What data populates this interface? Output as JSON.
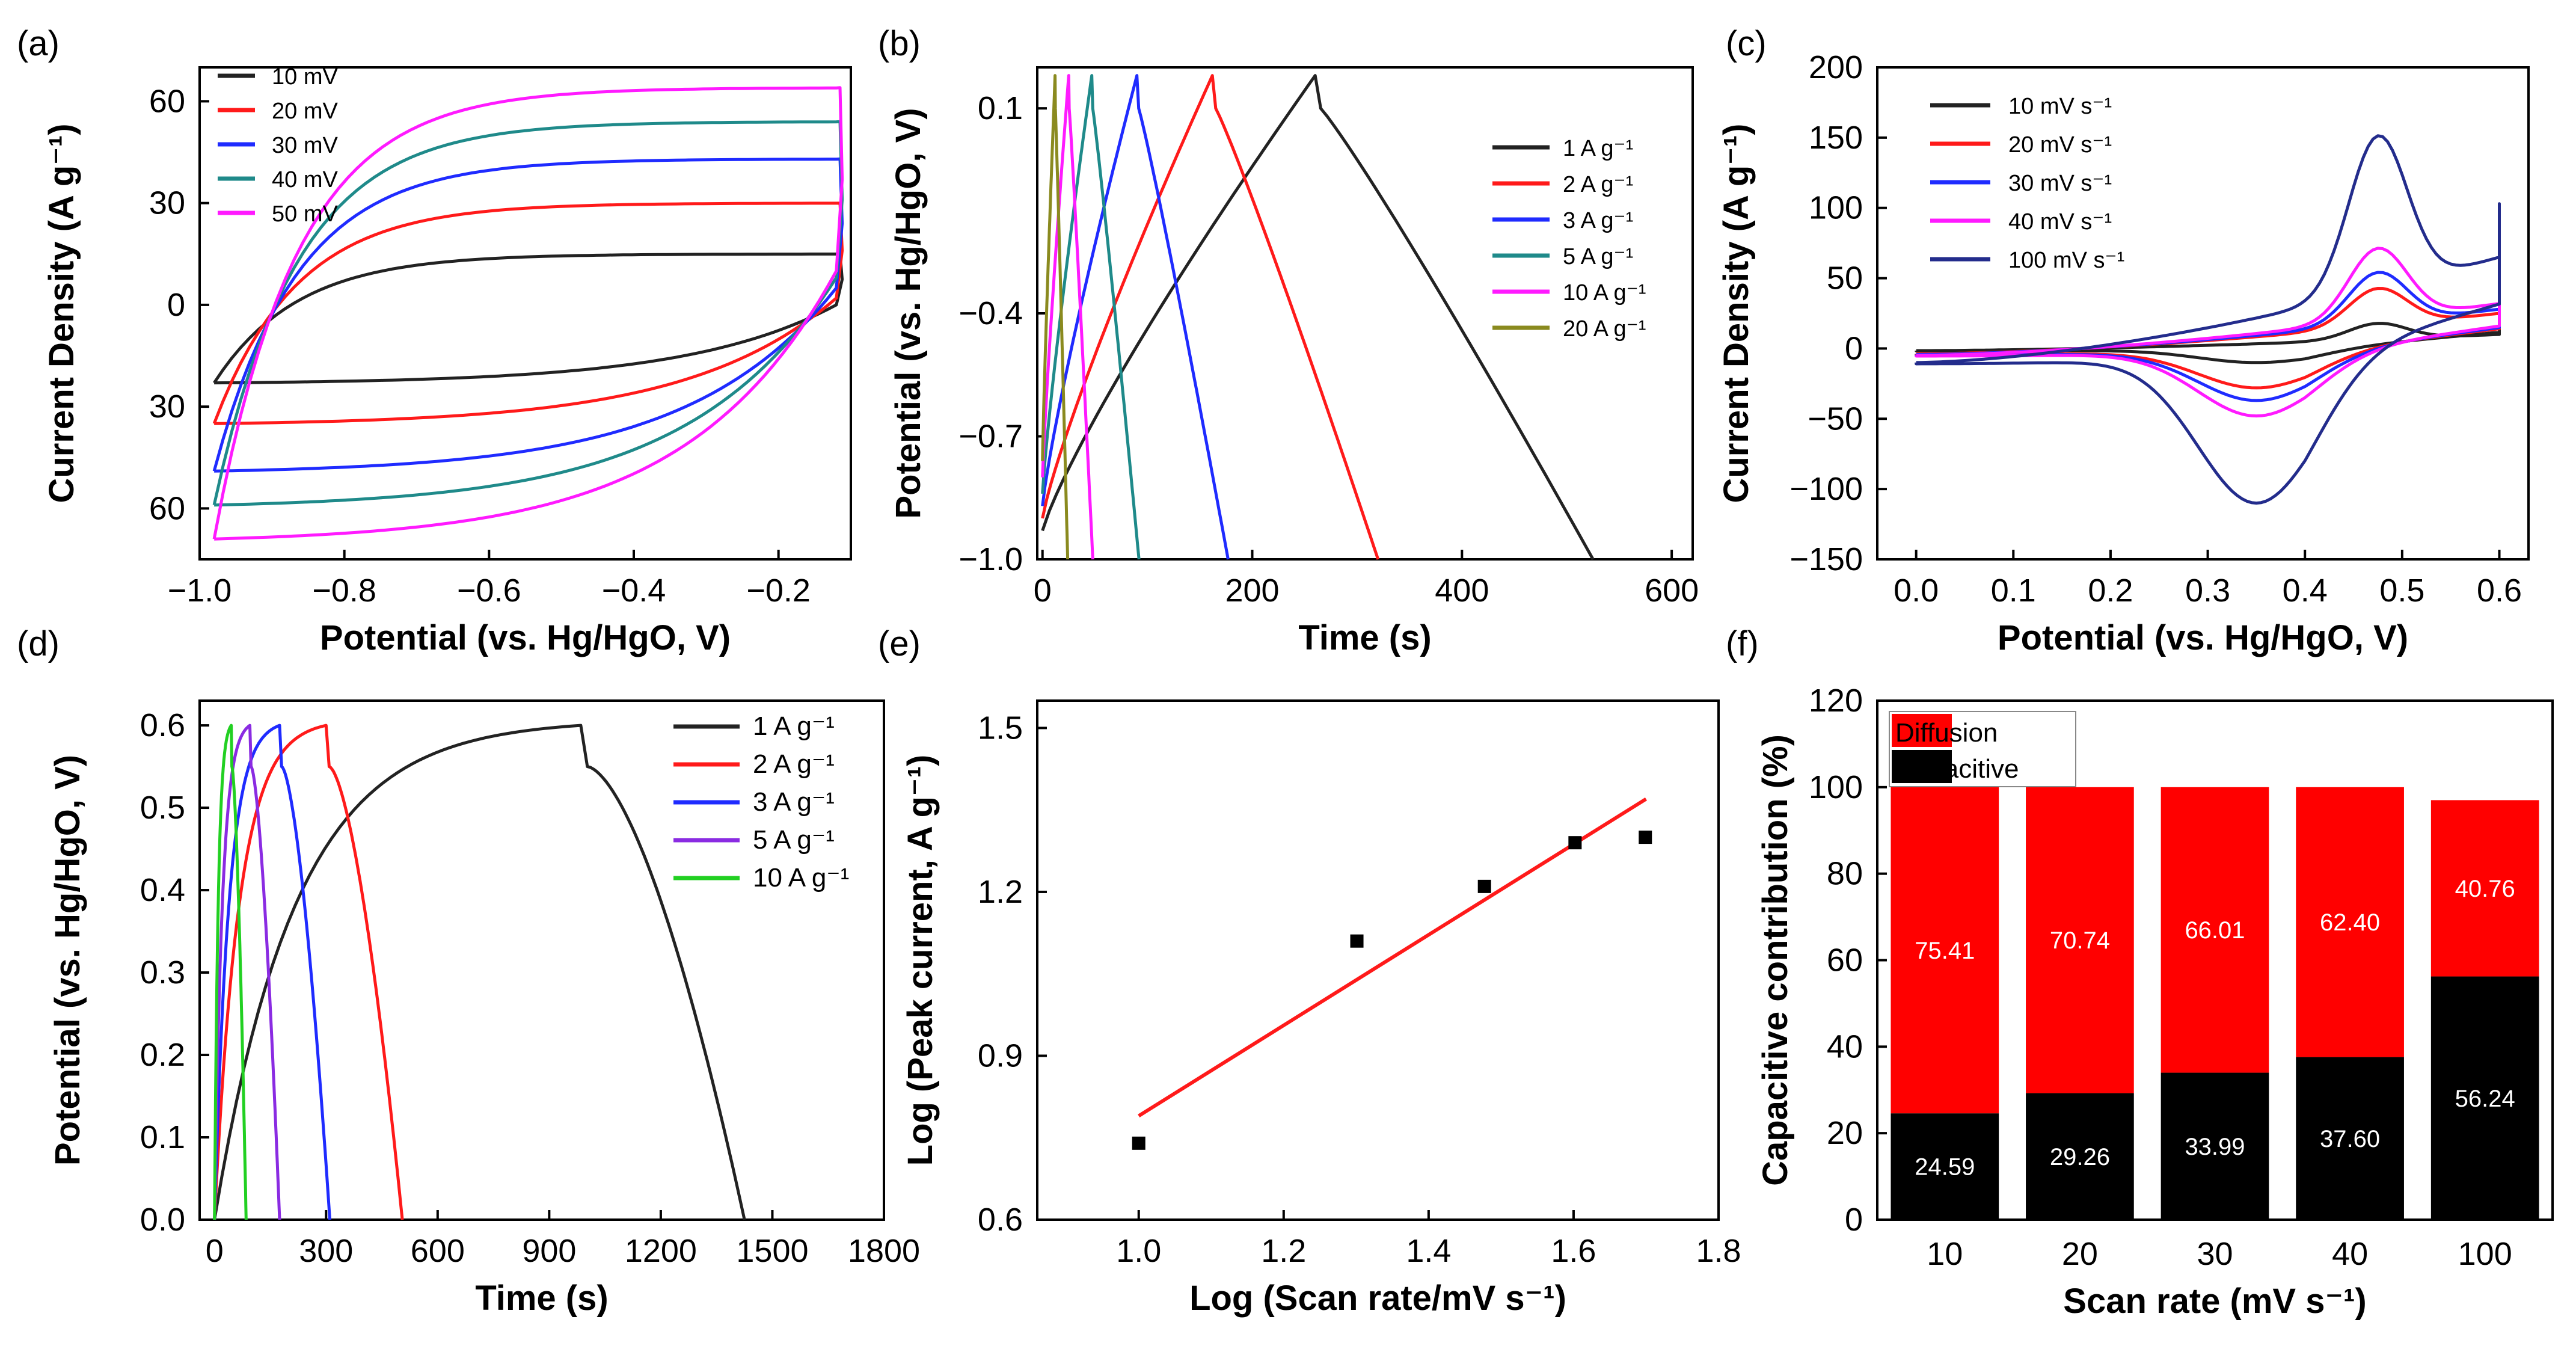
{
  "colors": {
    "black": "#222222",
    "red": "#ff1a1a",
    "blue": "#1f2bff",
    "teal": "#1f8a8a",
    "magenta": "#ff1aff",
    "olive": "#8a8a1f",
    "navy": "#232c8c",
    "purple": "#8a2be2",
    "green": "#22d022",
    "bar_red": "#ff0000",
    "bar_black": "#000000",
    "fit_red": "#ff1a1a"
  },
  "chart_data": [
    {
      "id": "a",
      "panel_label": "(a)",
      "type": "line",
      "subtype": "cyclic voltammetry",
      "xlabel": "Potential (vs. Hg/HgO, V)",
      "ylabel": "Current Density (A g⁻¹)",
      "xlim": [
        -1.0,
        -0.1
      ],
      "ylim": [
        -75,
        70
      ],
      "xticks": [
        -1.0,
        -0.8,
        -0.6,
        -0.4,
        -0.2
      ],
      "xtick_labels": [
        "−1.0",
        "−0.8",
        "−0.6",
        "−0.4",
        "−0.2"
      ],
      "yticks": [
        60,
        30,
        0,
        -30,
        -60
      ],
      "ytick_labels": [
        "60",
        "30",
        "0",
        "30",
        "60"
      ],
      "legend_position": "top-left",
      "series": [
        {
          "name": "10 mV",
          "color": "black",
          "x_min": -0.98,
          "x_max": -0.12,
          "upper_plateau": 15,
          "lower_start": -23,
          "lower_end": 0
        },
        {
          "name": "20 mV",
          "color": "red",
          "x_min": -0.98,
          "x_max": -0.12,
          "upper_plateau": 30,
          "lower_start": -35,
          "lower_end": 2
        },
        {
          "name": "30 mV",
          "color": "blue",
          "x_min": -0.98,
          "x_max": -0.12,
          "upper_plateau": 43,
          "lower_start": -49,
          "lower_end": 5
        },
        {
          "name": "40 mV",
          "color": "teal",
          "x_min": -0.98,
          "x_max": -0.12,
          "upper_plateau": 54,
          "lower_start": -59,
          "lower_end": 8
        },
        {
          "name": "50 mV",
          "color": "magenta",
          "x_min": -0.98,
          "x_max": -0.12,
          "upper_plateau": 64,
          "lower_start": -69,
          "lower_end": 10
        }
      ]
    },
    {
      "id": "b",
      "panel_label": "(b)",
      "type": "line",
      "subtype": "galvanostatic charge-discharge",
      "xlabel": "Time (s)",
      "ylabel": "Potential (vs. Hg/HgO, V)",
      "xlim": [
        -5,
        620
      ],
      "ylim": [
        -1.0,
        0.2
      ],
      "xticks": [
        0,
        200,
        400,
        600
      ],
      "xtick_labels": [
        "0",
        "200",
        "400",
        "600"
      ],
      "yticks": [
        0.1,
        -0.4,
        -0.7,
        -1.0
      ],
      "ytick_labels": [
        "0.1",
        "−0.4",
        "−0.7",
        "−1.0"
      ],
      "legend_position": "top-right",
      "series": [
        {
          "name": "1 A g⁻¹",
          "color": "black",
          "start_v": -0.93,
          "peak_v": 0.18,
          "peak_t": 260,
          "end_t": 525
        },
        {
          "name": "2 A g⁻¹",
          "color": "red",
          "start_v": -0.9,
          "peak_v": 0.18,
          "peak_t": 162,
          "end_t": 320
        },
        {
          "name": "3 A g⁻¹",
          "color": "blue",
          "start_v": -0.87,
          "peak_v": 0.18,
          "peak_t": 90,
          "end_t": 177
        },
        {
          "name": "5 A g⁻¹",
          "color": "teal",
          "start_v": -0.84,
          "peak_v": 0.18,
          "peak_t": 47,
          "end_t": 92
        },
        {
          "name": "10 A g⁻¹",
          "color": "magenta",
          "start_v": -0.8,
          "peak_v": 0.18,
          "peak_t": 25,
          "end_t": 48
        },
        {
          "name": "20 A g⁻¹",
          "color": "olive",
          "start_v": -0.76,
          "peak_v": 0.18,
          "peak_t": 12,
          "end_t": 24
        }
      ]
    },
    {
      "id": "c",
      "panel_label": "(c)",
      "type": "line",
      "subtype": "cyclic voltammetry",
      "xlabel": "Potential (vs. Hg/HgO, V)",
      "ylabel": "Current Density (A g⁻¹)",
      "xlim": [
        -0.04,
        0.63
      ],
      "ylim": [
        -150,
        200
      ],
      "xticks": [
        0.0,
        0.1,
        0.2,
        0.3,
        0.4,
        0.5,
        0.6
      ],
      "xtick_labels": [
        "0.0",
        "0.1",
        "0.2",
        "0.3",
        "0.4",
        "0.5",
        "0.6"
      ],
      "yticks": [
        200,
        150,
        100,
        50,
        0,
        -50,
        -100,
        -150
      ],
      "ytick_labels": [
        "200",
        "150",
        "100",
        "50",
        "0",
        "−50",
        "−100",
        "−150"
      ],
      "legend_position": "top-left",
      "series": [
        {
          "name": "10 mV s⁻¹",
          "color": "black",
          "base_top": 10,
          "anodic_peak": 20,
          "cathodic_peak": -10,
          "end_value": 35
        },
        {
          "name": "20 mV s⁻¹",
          "color": "red",
          "base_top": 25,
          "anodic_peak": 48,
          "cathodic_peak": -28,
          "end_value": 45
        },
        {
          "name": "30 mV s⁻¹",
          "color": "blue",
          "base_top": 28,
          "anodic_peak": 60,
          "cathodic_peak": -37,
          "end_value": 48
        },
        {
          "name": "40 mV s⁻¹",
          "color": "magenta",
          "base_top": 32,
          "anodic_peak": 78,
          "cathodic_peak": -48,
          "end_value": 52
        },
        {
          "name": "100 mV s⁻¹",
          "color": "navy",
          "base_top": 65,
          "anodic_peak": 165,
          "cathodic_peak": -110,
          "end_value": 103
        }
      ]
    },
    {
      "id": "d",
      "panel_label": "(d)",
      "type": "line",
      "subtype": "galvanostatic charge-discharge",
      "xlabel": "Time (s)",
      "ylabel": "Potential (vs. Hg/HgO, V)",
      "xlim": [
        -40,
        1800
      ],
      "ylim": [
        0.0,
        0.63
      ],
      "xticks": [
        0,
        300,
        600,
        900,
        1200,
        1500,
        1800
      ],
      "xtick_labels": [
        "0",
        "300",
        "600",
        "900",
        "1200",
        "1500",
        "1800"
      ],
      "yticks": [
        0.0,
        0.1,
        0.2,
        0.3,
        0.4,
        0.5,
        0.6
      ],
      "ytick_labels": [
        "0.0",
        "0.1",
        "0.2",
        "0.3",
        "0.4",
        "0.5",
        "0.6"
      ],
      "legend_position": "top-right",
      "series": [
        {
          "name": "1 A g⁻¹",
          "color": "black",
          "peak_t": 985,
          "end_t": 1425
        },
        {
          "name": "2 A g⁻¹",
          "color": "red",
          "peak_t": 300,
          "end_t": 505
        },
        {
          "name": "3 A g⁻¹",
          "color": "blue",
          "peak_t": 175,
          "end_t": 310
        },
        {
          "name": "5 A g⁻¹",
          "color": "purple",
          "peak_t": 95,
          "end_t": 175
        },
        {
          "name": "10 A g⁻¹",
          "color": "green",
          "peak_t": 45,
          "end_t": 85
        }
      ]
    },
    {
      "id": "e",
      "panel_label": "(e)",
      "type": "scatter",
      "xlabel": "Log (Scan rate/mV s⁻¹)",
      "ylabel": "Log (Peak current, A g⁻¹)",
      "xlim": [
        0.86,
        1.8
      ],
      "ylim": [
        0.6,
        1.55
      ],
      "xticks": [
        1.0,
        1.2,
        1.4,
        1.6,
        1.8
      ],
      "xtick_labels": [
        "1.0",
        "1.2",
        "1.4",
        "1.6",
        "1.8"
      ],
      "yticks": [
        0.6,
        0.9,
        1.2,
        1.5
      ],
      "ytick_labels": [
        "0.6",
        "0.9",
        "1.2",
        "1.5"
      ],
      "points": {
        "x": [
          1.0,
          1.301,
          1.477,
          1.602,
          1.699
        ],
        "y": [
          0.74,
          1.11,
          1.21,
          1.29,
          1.3
        ]
      },
      "fit_line": {
        "x": [
          1.0,
          1.7
        ],
        "y": [
          0.79,
          1.37
        ]
      }
    },
    {
      "id": "f",
      "panel_label": "(f)",
      "type": "bar",
      "subtype": "stacked",
      "xlabel": "Scan rate (mV s⁻¹)",
      "ylabel": "Capacitive contribution (%)",
      "ylim": [
        0,
        120
      ],
      "yticks": [
        0,
        20,
        40,
        60,
        80,
        100,
        120
      ],
      "ytick_labels": [
        "0",
        "20",
        "40",
        "60",
        "80",
        "100",
        "120"
      ],
      "categories": [
        "10",
        "20",
        "30",
        "40",
        "100"
      ],
      "legend_position": "top-left",
      "series": [
        {
          "name": "Capacitive",
          "color": "bar_black",
          "values": [
            24.59,
            29.26,
            33.99,
            37.6,
            56.24
          ],
          "labels": [
            "24.59",
            "29.26",
            "33.99",
            "37.60",
            "56.24"
          ]
        },
        {
          "name": "Diffusion",
          "color": "bar_red",
          "values": [
            75.41,
            70.74,
            66.01,
            62.4,
            40.76
          ],
          "labels": [
            "75.41",
            "70.74",
            "66.01",
            "62.40",
            "40.76"
          ]
        }
      ]
    }
  ]
}
